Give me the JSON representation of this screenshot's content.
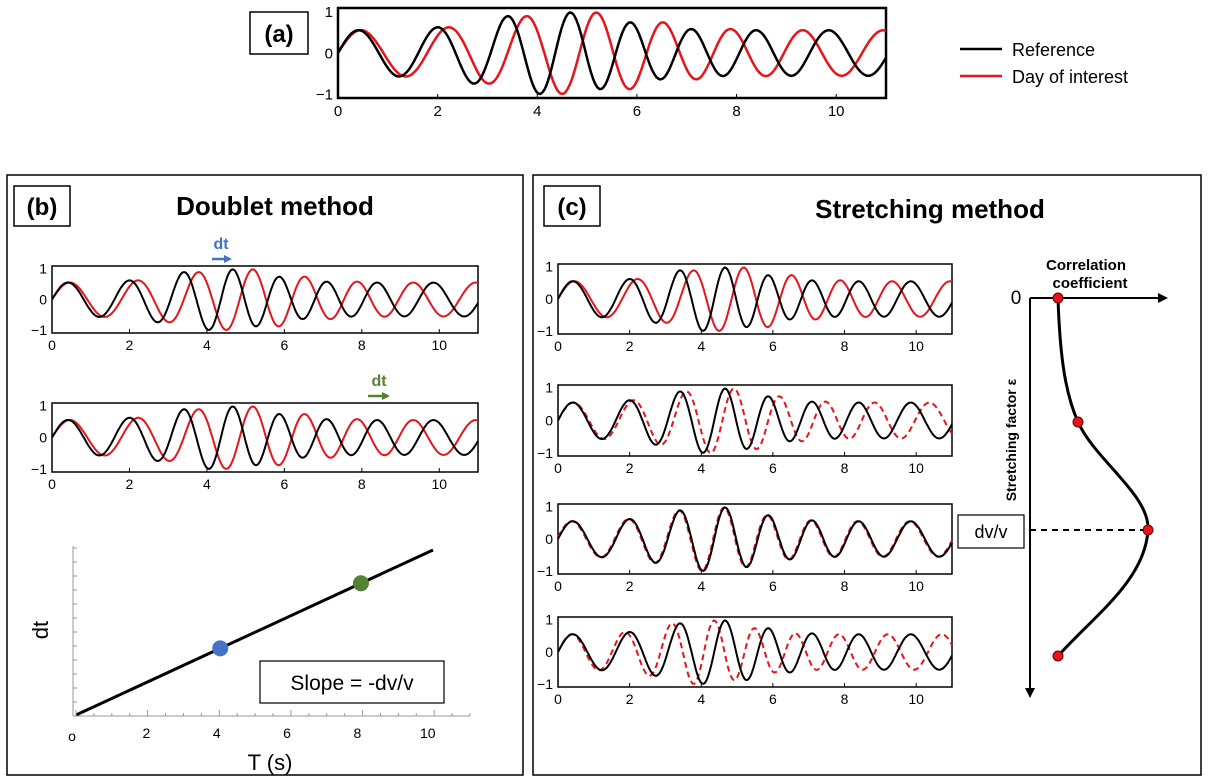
{
  "panel_a": {
    "label": "(a)",
    "ticks_x": [
      "0",
      "2",
      "4",
      "6",
      "8",
      "10"
    ],
    "ticks_y": [
      "1",
      "0",
      "−1"
    ],
    "legend": [
      {
        "name": "Reference",
        "color": "#000000"
      },
      {
        "name": "Day of interest",
        "color": "#e8141b"
      }
    ]
  },
  "panel_b": {
    "label": "(b)",
    "title": "Doublet method",
    "plot1": {
      "ticks_x": [
        "0",
        "2",
        "4",
        "6",
        "8",
        "10"
      ],
      "ticks_y": [
        "1",
        "0",
        "−1"
      ],
      "window_label": "dt",
      "window_color": "#4472c4"
    },
    "plot2": {
      "ticks_x": [
        "0",
        "2",
        "4",
        "6",
        "8",
        "10"
      ],
      "ticks_y": [
        "1",
        "0",
        "−1"
      ],
      "window_label": "dt",
      "window_color": "#548235"
    },
    "scatter": {
      "ylabel": "dt",
      "xlabel": "T (s)",
      "ticks_x": [
        "o",
        "2",
        "4",
        "6",
        "8",
        "10"
      ],
      "slope_label": "Slope = -dv/v",
      "points": [
        {
          "x": 4.1,
          "color": "#4472c4"
        },
        {
          "x": 8.1,
          "color": "#548235"
        }
      ]
    }
  },
  "panel_c": {
    "label": "(c)",
    "title": "Stretching method",
    "plot_ticks_x": [
      "0",
      "2",
      "4",
      "6",
      "8",
      "10"
    ],
    "plot_ticks_y": [
      "1",
      "0",
      "−1"
    ],
    "corr_title_1": "Correlation",
    "corr_title_2": "coefficient",
    "axis_zero": "0",
    "yaxis_label": "Stretching factor ε",
    "dvv_label": "dv/v",
    "marker_color": "#e8141b"
  }
}
